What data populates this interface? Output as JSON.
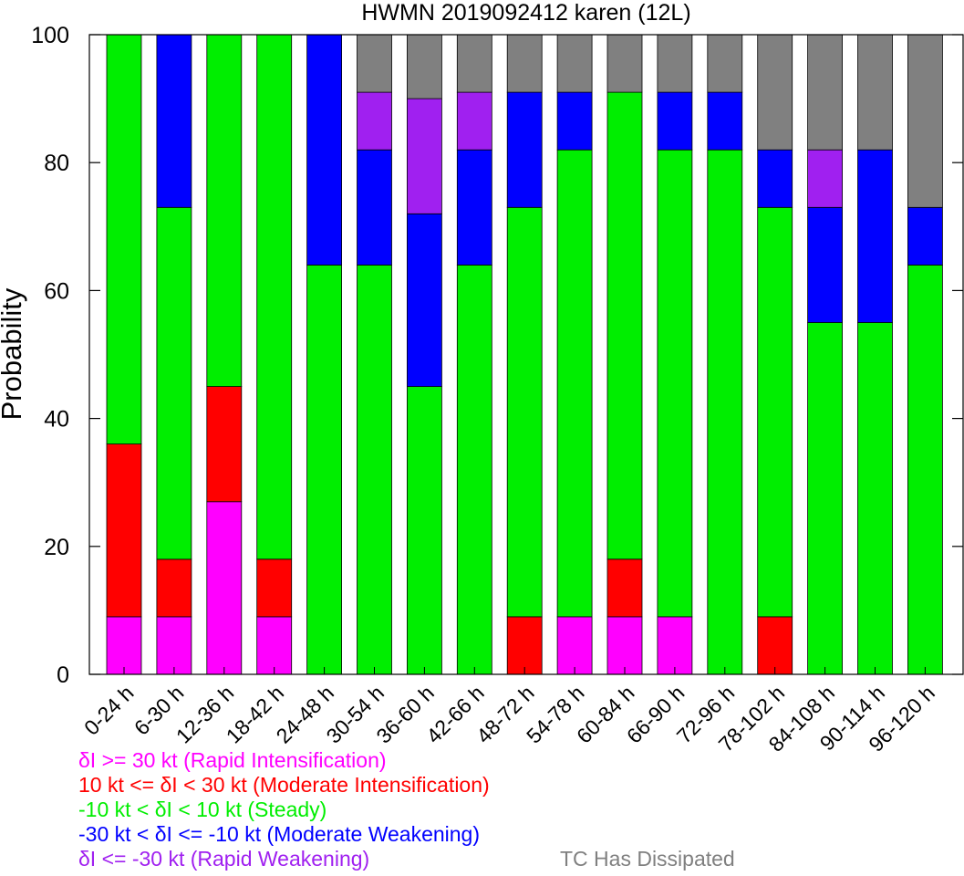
{
  "chart_data": {
    "type": "bar",
    "stacked": true,
    "title": "HWMN 2019092412 karen (12L)",
    "ylabel": "Probability",
    "xlabel": "",
    "ylim": [
      0,
      100
    ],
    "yticks": [
      0,
      20,
      40,
      60,
      80,
      100
    ],
    "categories": [
      "0-24 h",
      "6-30 h",
      "12-36 h",
      "18-42 h",
      "24-48 h",
      "30-54 h",
      "36-60 h",
      "42-66 h",
      "48-72 h",
      "54-78 h",
      "60-84 h",
      "66-90 h",
      "72-96 h",
      "78-102 h",
      "84-108 h",
      "90-114 h",
      "96-120 h"
    ],
    "series": [
      {
        "name": "δI >= 30 kt (Rapid Intensification)",
        "color": "#ff00ff",
        "values": [
          9,
          9,
          27,
          9,
          0,
          0,
          0,
          0,
          0,
          9,
          9,
          9,
          0,
          0,
          0,
          0,
          0
        ]
      },
      {
        "name": "10 kt <= δI < 30 kt (Moderate Intensification)",
        "color": "#ff0000",
        "values": [
          27,
          9,
          18,
          9,
          0,
          0,
          0,
          0,
          9,
          0,
          9,
          0,
          0,
          9,
          0,
          0,
          0
        ]
      },
      {
        "name": "-10 kt < δI < 10 kt (Steady)",
        "color": "#00ee00",
        "values": [
          64,
          55,
          55,
          82,
          64,
          64,
          45,
          64,
          64,
          73,
          73,
          73,
          82,
          64,
          55,
          55,
          64
        ]
      },
      {
        "name": "-30 kt < δI <= -10 kt (Moderate Weakening)",
        "color": "#0000ff",
        "values": [
          0,
          27,
          0,
          0,
          36,
          18,
          27,
          18,
          18,
          9,
          0,
          9,
          9,
          9,
          18,
          27,
          9
        ]
      },
      {
        "name": "δI <= -30 kt (Rapid Weakening)",
        "color": "#a020f0",
        "values": [
          0,
          0,
          0,
          0,
          0,
          9,
          18,
          9,
          0,
          0,
          0,
          0,
          0,
          0,
          9,
          0,
          0
        ]
      },
      {
        "name": "TC Has Dissipated",
        "color": "#808080",
        "values": [
          0,
          0,
          0,
          0,
          0,
          9,
          10,
          9,
          9,
          9,
          9,
          9,
          9,
          18,
          18,
          18,
          27
        ]
      }
    ],
    "grid": false,
    "legend": "bottom"
  }
}
